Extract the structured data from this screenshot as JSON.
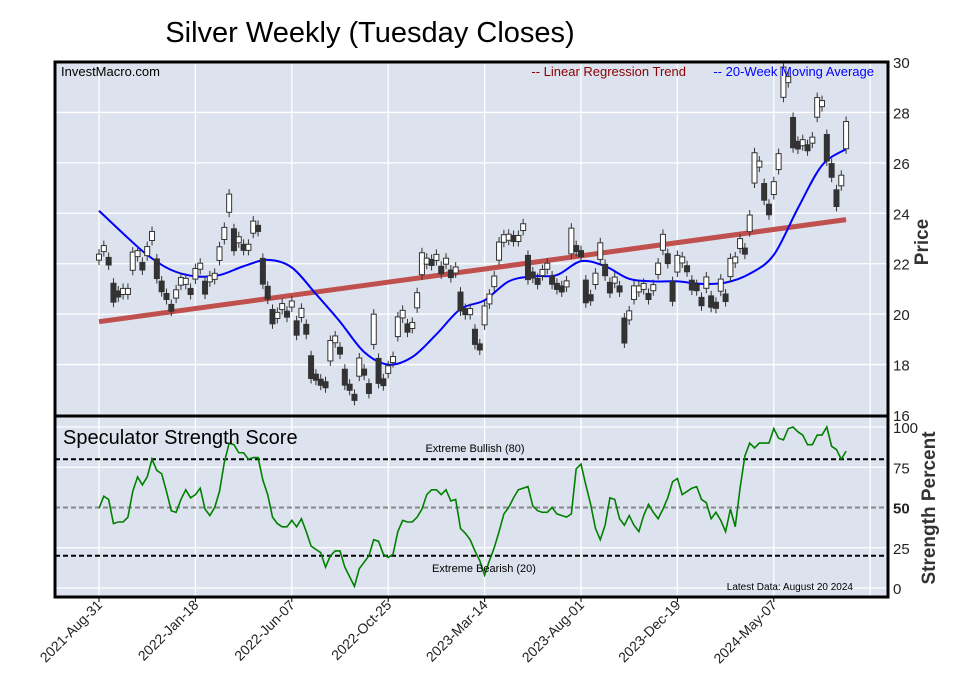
{
  "chart_data": [
    {
      "type": "candlestick",
      "title": "Silver Weekly (Tuesday Closes)",
      "watermark": "InvestMacro.com",
      "ylabel": "Price",
      "ylim": [
        16,
        30
      ],
      "yticks": [
        16,
        18,
        20,
        22,
        24,
        26,
        28,
        30
      ],
      "grid": true,
      "legend_position": "top-right",
      "legend": {
        "regression": "-- Linear Regression Trend",
        "ma": "-- 20-Week Moving Average"
      },
      "colors": {
        "regression": "#c0504d",
        "ma": "#0000ff",
        "up": "#ffffff",
        "down": "#333333",
        "plot_bg": "#dde3ee",
        "legend_regression_text": "#8b0000"
      },
      "start_date": "2021-08-31",
      "frequency": "weekly",
      "close": [
        22.26,
        22.6,
        22.1,
        20.85,
        20.8,
        20.9,
        20.9,
        22.1,
        22.4,
        21.9,
        22.5,
        23.1,
        21.8,
        21.1,
        20.7,
        20.25,
        20.8,
        21.3,
        21.3,
        20.9,
        21.6,
        21.9,
        21.05,
        21.4,
        21.5,
        22.4,
        23.2,
        24.4,
        22.95,
        22.95,
        22.65,
        22.65,
        23.45,
        23.4,
        21.7,
        20.85,
        19.9,
        19.95,
        20.3,
        20.0,
        20.4,
        19.45,
        20.05,
        19.4,
        17.9,
        17.5,
        17.3,
        17.2,
        18.55,
        19.0,
        18.55,
        17.5,
        17.1,
        16.7,
        17.9,
        17.7,
        17.05,
        19.4,
        17.75,
        17.3,
        17.8,
        18.2,
        19.5,
        20.0,
        19.45,
        19.55,
        20.55,
        22.0,
        22.1,
        22.05,
        22.25,
        21.75,
        22.1,
        21.6,
        21.75,
        20.5,
        20.1,
        20.1,
        19.1,
        18.7,
        19.95,
        20.6,
        21.3,
        22.5,
        23.0,
        23.05,
        23.0,
        23.0,
        23.45,
        21.85,
        21.55,
        21.3,
        21.65,
        21.9,
        21.35,
        21.1,
        21.0,
        21.2,
        22.9,
        22.6,
        22.4,
        20.9,
        20.65,
        21.4,
        22.5,
        21.75,
        21.05,
        21.35,
        21.0,
        19.35,
        19.95,
        20.85,
        21.0,
        21.1,
        20.7,
        21.05,
        21.8,
        22.85,
        22.2,
        20.9,
        22.0,
        22.15,
        21.8,
        21.15,
        21.05,
        20.5,
        21.25,
        20.5,
        20.35,
        21.15,
        20.65,
        21.85,
        22.15,
        22.8,
        22.5,
        23.6,
        25.8,
        25.95,
        24.85,
        24.15,
        25.0,
        26.05,
        29.2,
        29.3,
        27.2,
        26.7,
        26.8,
        26.6,
        26.9,
        28.2,
        28.35,
        26.6,
        25.7,
        24.6,
        25.3,
        27.1
      ],
      "moving_average_20w": [
        {
          "date": "2021-08-31",
          "value": 24.1
        },
        {
          "date": "2021-10-05",
          "value": 23.2
        },
        {
          "date": "2021-11-09",
          "value": 22.35
        },
        {
          "date": "2021-12-14",
          "value": 21.75
        },
        {
          "date": "2022-01-18",
          "value": 21.5
        },
        {
          "date": "2022-02-22",
          "value": 21.55
        },
        {
          "date": "2022-03-29",
          "value": 21.9
        },
        {
          "date": "2022-05-03",
          "value": 22.15
        },
        {
          "date": "2022-06-07",
          "value": 21.85
        },
        {
          "date": "2022-07-12",
          "value": 20.8
        },
        {
          "date": "2022-08-16",
          "value": 19.7
        },
        {
          "date": "2022-09-20",
          "value": 18.5
        },
        {
          "date": "2022-10-25",
          "value": 18.0
        },
        {
          "date": "2022-11-29",
          "value": 18.3
        },
        {
          "date": "2023-01-03",
          "value": 19.2
        },
        {
          "date": "2023-02-07",
          "value": 20.2
        },
        {
          "date": "2023-03-14",
          "value": 20.55
        },
        {
          "date": "2023-04-18",
          "value": 21.3
        },
        {
          "date": "2023-05-23",
          "value": 21.5
        },
        {
          "date": "2023-06-27",
          "value": 21.55
        },
        {
          "date": "2023-08-01",
          "value": 22.1
        },
        {
          "date": "2023-09-05",
          "value": 21.9
        },
        {
          "date": "2023-10-10",
          "value": 21.4
        },
        {
          "date": "2023-11-14",
          "value": 21.3
        },
        {
          "date": "2023-12-19",
          "value": 21.3
        },
        {
          "date": "2024-01-23",
          "value": 21.2
        },
        {
          "date": "2024-02-27",
          "value": 21.25
        },
        {
          "date": "2024-04-02",
          "value": 21.6
        },
        {
          "date": "2024-05-07",
          "value": 22.35
        },
        {
          "date": "2024-06-11",
          "value": 24.2
        },
        {
          "date": "2024-07-16",
          "value": 25.9
        },
        {
          "date": "2024-08-20",
          "value": 26.55
        }
      ],
      "regression_trend": [
        {
          "date": "2021-08-31",
          "value": 19.7
        },
        {
          "date": "2024-08-20",
          "value": 23.75
        }
      ]
    },
    {
      "type": "line",
      "title": "Speculator Strength Score",
      "ylabel": "Strength Percent",
      "ylim": [
        0,
        100
      ],
      "yticks": [
        0,
        25,
        50,
        75,
        100
      ],
      "reference_lines": [
        {
          "value": 80,
          "label": "Extreme Bullish (80)"
        },
        {
          "value": 50,
          "label": ""
        },
        {
          "value": 20,
          "label": "Extreme Bearish (20)"
        }
      ],
      "note": "Latest Data: August 20 2024",
      "colors": {
        "line": "#008000"
      },
      "start_date": "2021-08-31",
      "frequency": "weekly",
      "values": [
        49.5,
        57,
        55,
        40,
        41,
        41,
        44,
        60,
        69,
        64,
        69,
        80,
        73,
        71,
        60,
        48,
        47,
        55,
        61,
        56,
        58,
        62,
        49,
        45,
        50,
        60,
        78,
        90,
        89,
        84,
        84,
        80,
        81,
        81,
        67,
        58,
        44,
        40,
        38,
        38,
        42,
        38,
        43,
        35,
        26,
        24,
        22,
        13,
        20,
        23,
        23,
        13,
        7,
        1,
        12,
        16,
        20,
        30,
        29,
        21,
        19,
        21,
        35,
        42,
        41,
        41,
        44,
        49,
        58,
        61,
        61,
        58,
        61,
        54,
        55,
        37,
        34,
        30,
        23,
        17,
        8,
        17,
        25,
        35,
        46,
        50,
        56,
        61,
        62,
        63,
        51,
        48,
        47,
        47,
        50,
        46,
        45,
        44,
        46,
        74,
        77,
        64,
        52,
        37,
        30,
        39,
        56,
        55,
        43,
        39,
        45,
        39,
        35,
        45,
        52,
        47,
        43,
        49,
        56,
        66,
        68,
        58,
        60,
        62,
        63,
        55,
        53,
        43,
        47,
        42,
        35,
        49,
        38,
        62,
        82,
        90,
        87,
        90,
        90,
        90,
        99,
        93,
        92,
        99,
        100,
        97,
        95,
        89,
        89,
        95,
        95,
        100,
        88,
        86,
        80,
        85
      ]
    }
  ],
  "x_axis": {
    "tick_labels": [
      "2021-Aug-31",
      "2022-Jan-18",
      "2022-Jun-07",
      "2022-Oct-25",
      "2023-Mar-14",
      "2023-Aug-01",
      "2023-Dec-19",
      "2024-May-07"
    ]
  }
}
